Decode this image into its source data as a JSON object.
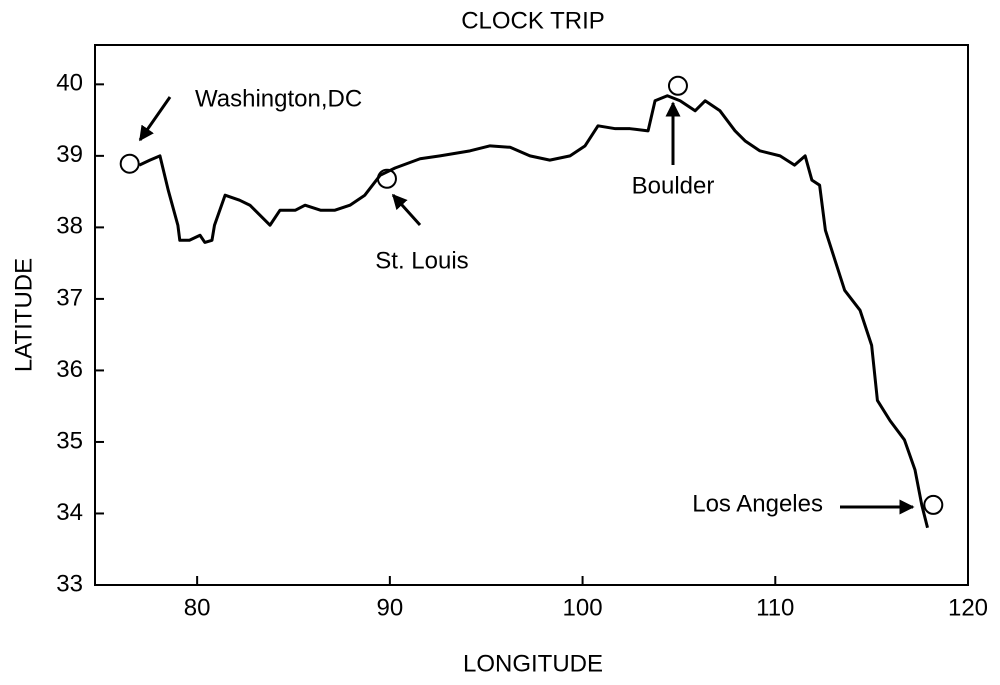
{
  "chart_data": {
    "type": "line",
    "title": "CLOCK TRIP",
    "x_label": "LONGITUDE",
    "y_label": "LATITUDE",
    "color": "#000000",
    "xlim": [
      74.7,
      120
    ],
    "xticks": [
      80,
      90,
      100,
      110,
      120
    ],
    "ylim": [
      33,
      40.55
    ],
    "yticks": [
      33,
      34,
      35,
      36,
      37,
      38,
      39,
      40
    ],
    "series": [
      {
        "x": [
          77.0,
          77.55,
          78.07,
          78.5,
          79.0,
          79.1,
          79.6,
          80.15,
          80.4,
          80.77,
          80.9,
          81.45,
          82.2,
          82.74,
          83.26,
          83.78,
          84.3,
          85.1,
          85.6,
          86.4,
          87.15,
          87.93,
          88.7,
          89.5,
          90.27,
          91.57,
          92.6,
          94.16,
          95.2,
          96.24,
          97.27,
          98.3,
          99.35,
          100.13,
          100.8,
          101.7,
          102.46,
          103.4,
          103.76,
          104.4,
          105.06,
          105.84,
          106.36,
          107.13,
          107.91,
          108.43,
          109.2,
          110.25,
          111.0,
          111.55,
          111.9,
          112.3,
          112.6,
          113.1,
          113.6,
          114.4,
          115.0,
          115.3,
          115.95,
          116.7,
          117.25,
          117.6,
          117.9
        ],
        "values": [
          38.87,
          38.94,
          39.0,
          38.52,
          38.03,
          37.82,
          37.82,
          37.89,
          37.79,
          37.82,
          38.03,
          38.45,
          38.38,
          38.31,
          38.17,
          38.03,
          38.24,
          38.24,
          38.31,
          38.24,
          38.24,
          38.31,
          38.45,
          38.73,
          38.83,
          38.96,
          39.0,
          39.07,
          39.14,
          39.12,
          39.0,
          38.94,
          39.0,
          39.14,
          39.42,
          39.38,
          39.38,
          39.35,
          39.77,
          39.84,
          39.77,
          39.63,
          39.77,
          39.63,
          39.35,
          39.21,
          39.07,
          39.0,
          38.87,
          39.0,
          38.66,
          38.59,
          37.96,
          37.54,
          37.12,
          36.84,
          36.35,
          35.58,
          35.3,
          35.03,
          34.61,
          34.12,
          33.8
        ]
      }
    ],
    "annotations": [
      {
        "text": "Washington,DC",
        "x": 76.5,
        "y": 38.89
      },
      {
        "text": "St. Louis",
        "x": 89.85,
        "y": 38.68
      },
      {
        "text": "Boulder",
        "x": 104.95,
        "y": 39.98
      },
      {
        "text": "Los Angeles",
        "x": 118.2,
        "y": 34.12
      }
    ]
  }
}
